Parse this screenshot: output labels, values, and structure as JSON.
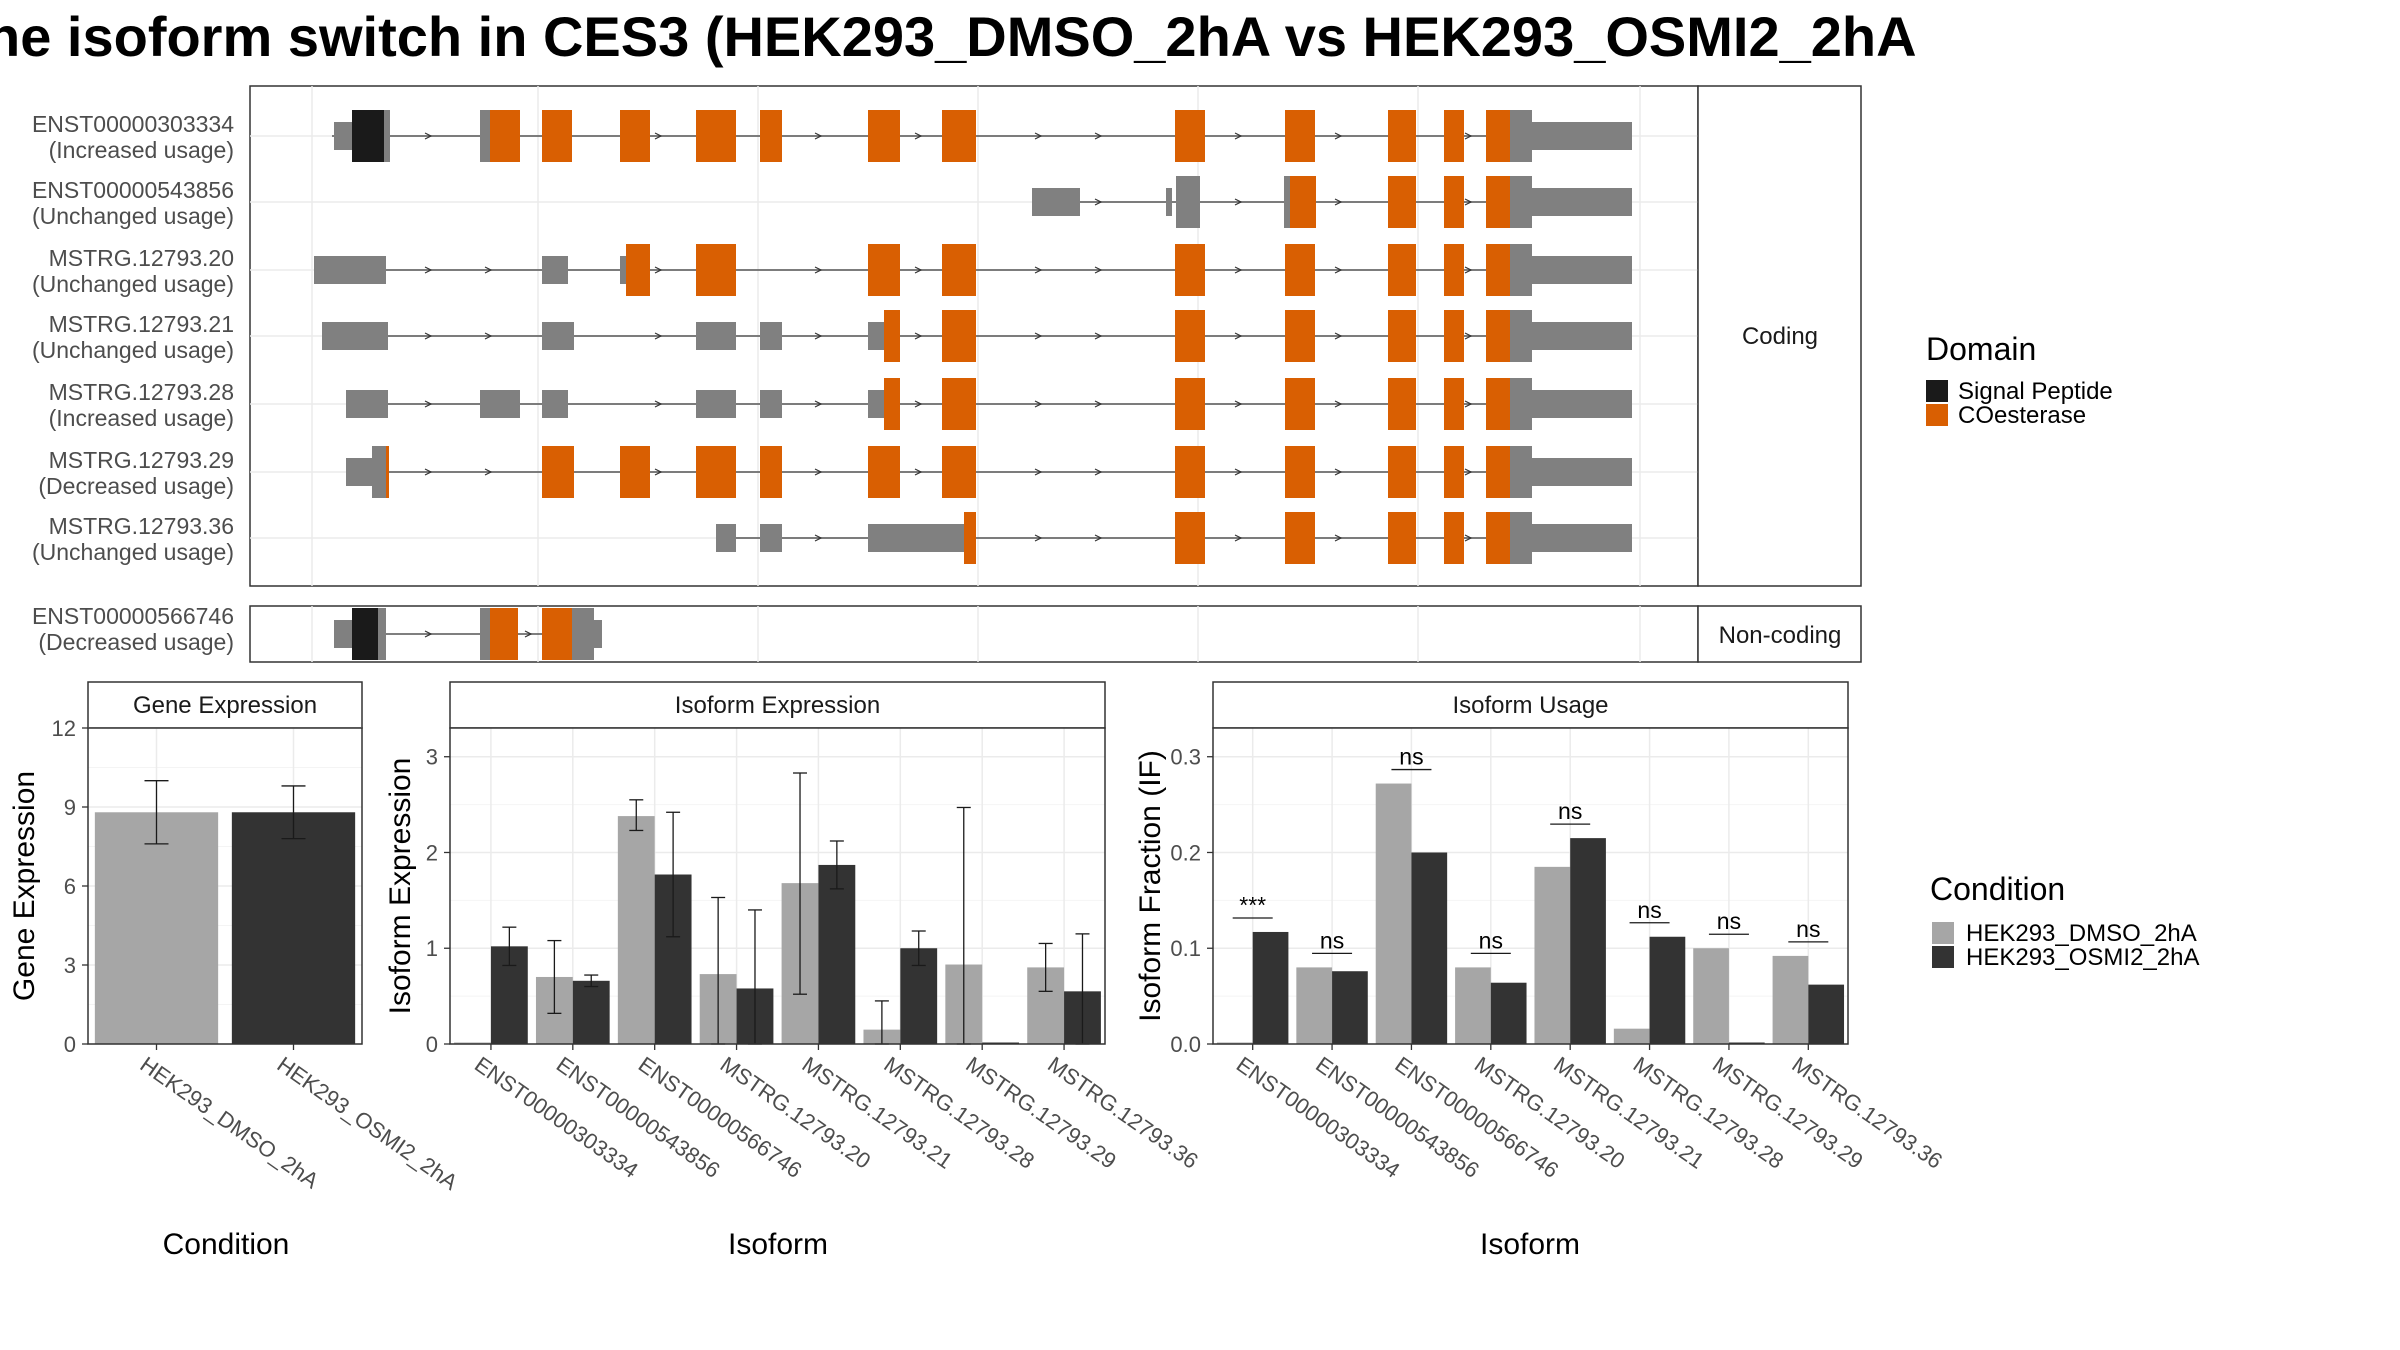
{
  "title": "he isoform switch in CES3 (HEK293_DMSO_2hA vs HEK293_OSMI2_2hA",
  "colors": {
    "signal_peptide": "#1a1a1a",
    "coesterase": "#d95f02",
    "exon_plain": "#808080",
    "dmso": "#a6a6a6",
    "osmi2": "#333333"
  },
  "structure": {
    "coding_label": "Coding",
    "noncoding_label": "Non-coding",
    "domain_legend": {
      "title": "Domain",
      "items": [
        "Signal Peptide",
        "COesterase"
      ]
    },
    "coding_isoforms": [
      {
        "id": "ENST00000303334",
        "usage": "(Increased usage)"
      },
      {
        "id": "ENST00000543856",
        "usage": "(Unchanged usage)"
      },
      {
        "id": "MSTRG.12793.20",
        "usage": "(Unchanged usage)"
      },
      {
        "id": "MSTRG.12793.21",
        "usage": "(Unchanged usage)"
      },
      {
        "id": "MSTRG.12793.28",
        "usage": "(Increased usage)"
      },
      {
        "id": "MSTRG.12793.29",
        "usage": "(Decreased usage)"
      },
      {
        "id": "MSTRG.12793.36",
        "usage": "(Unchanged usage)"
      }
    ],
    "noncoding_isoforms": [
      {
        "id": "ENST00000566746",
        "usage": "(Decreased usage)"
      }
    ]
  },
  "chart_data": [
    {
      "type": "bar",
      "title": "Gene Expression",
      "xlabel": "Condition",
      "ylabel": "Gene Expression",
      "categories": [
        "HEK293_DMSO_2hA",
        "HEK293_OSMI2_2hA"
      ],
      "values": [
        8.8,
        8.8
      ],
      "errors": [
        [
          7.6,
          10.0
        ],
        [
          7.8,
          9.8
        ]
      ],
      "ylim": [
        0,
        12
      ],
      "yticks": [
        0,
        3,
        6,
        9,
        12
      ]
    },
    {
      "type": "bar",
      "title": "Isoform Expression",
      "xlabel": "Isoform",
      "ylabel": "Isoform Expression",
      "categories": [
        "ENST00000303334",
        "ENST00000543856",
        "ENST00000566746",
        "MSTRG.12793.20",
        "MSTRG.12793.21",
        "MSTRG.12793.28",
        "MSTRG.12793.29",
        "MSTRG.12793.36"
      ],
      "series": [
        {
          "values": [
            0.0,
            0.7,
            2.38,
            0.73,
            1.68,
            0.15,
            0.83,
            0.8
          ],
          "errors": [
            null,
            [
              0.32,
              1.08
            ],
            [
              2.23,
              2.55
            ],
            [
              0.0,
              1.53
            ],
            [
              0.52,
              2.83
            ],
            [
              0.0,
              0.45
            ],
            [
              0.0,
              2.47
            ],
            [
              0.55,
              1.05
            ]
          ]
        },
        {
          "values": [
            1.02,
            0.66,
            1.77,
            0.58,
            1.87,
            1.0,
            0.0,
            0.55
          ],
          "errors": [
            [
              0.82,
              1.22
            ],
            [
              0.6,
              0.72
            ],
            [
              1.12,
              2.42
            ],
            [
              0.0,
              1.4
            ],
            [
              1.62,
              2.12
            ],
            [
              0.82,
              1.18
            ],
            null,
            [
              0.0,
              1.15
            ]
          ]
        }
      ],
      "ylim": [
        0,
        3.3
      ],
      "yticks": [
        0,
        1,
        2,
        3
      ]
    },
    {
      "type": "bar",
      "title": "Isoform Usage",
      "xlabel": "Isoform",
      "ylabel": "Isoform Fraction (IF)",
      "categories": [
        "ENST00000303334",
        "ENST00000543856",
        "ENST00000566746",
        "MSTRG.12793.20",
        "MSTRG.12793.21",
        "MSTRG.12793.28",
        "MSTRG.12793.29",
        "MSTRG.12793.36"
      ],
      "series": [
        {
          "values": [
            0.0,
            0.08,
            0.272,
            0.08,
            0.185,
            0.016,
            0.1,
            0.092
          ]
        },
        {
          "values": [
            0.117,
            0.076,
            0.2,
            0.064,
            0.215,
            0.112,
            0.0,
            0.062
          ]
        }
      ],
      "significance": [
        "***",
        "ns",
        "ns",
        "ns",
        "ns",
        "ns",
        "ns",
        "ns"
      ],
      "ylim": [
        0,
        0.33
      ],
      "yticks": [
        "0.0",
        "0.1",
        "0.2",
        "0.3"
      ]
    }
  ],
  "condition_legend": {
    "title": "Condition",
    "items": [
      "HEK293_DMSO_2hA",
      "HEK293_OSMI2_2hA"
    ]
  }
}
